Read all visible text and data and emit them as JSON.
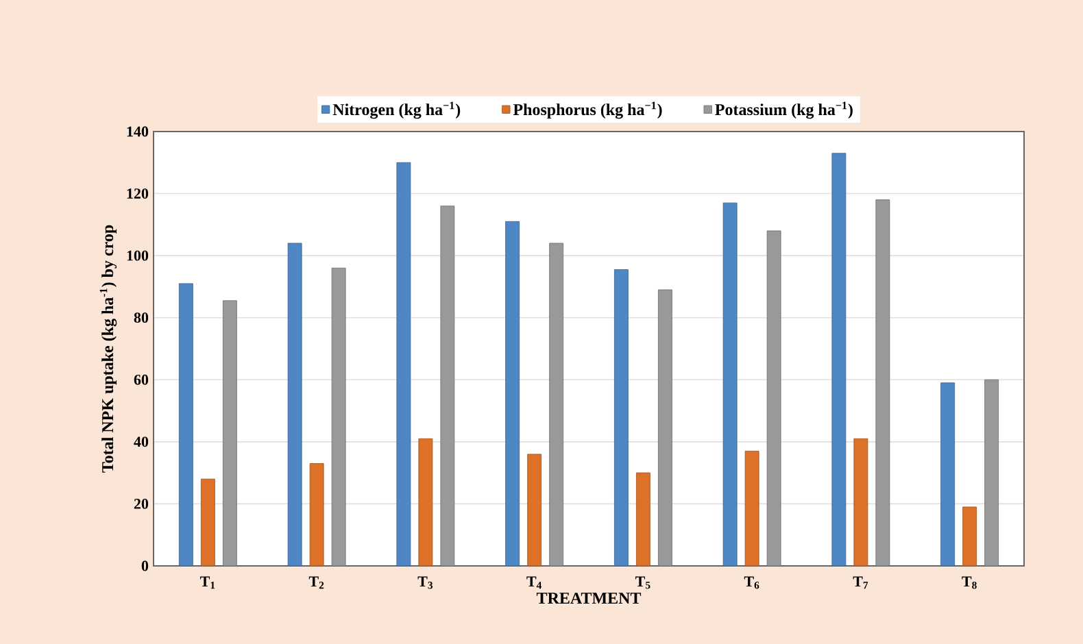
{
  "chart_data": {
    "type": "bar",
    "xlabel": "TREATMENT",
    "ylabel": "Total NPK uptake (kg ha$^{-1}$) by crop",
    "categories": [
      "T$_{1}$",
      "T$_{2}$",
      "T$_{3}$",
      "T$_{4}$",
      "T$_{5}$",
      "T$_{6}$",
      "T$_{7}$",
      "T$_{8}$"
    ],
    "series": [
      {
        "name": "Nitrogen (kg ha$^{−1}$)",
        "color": "#4f87c4",
        "values": [
          91,
          104,
          130,
          111,
          95.5,
          117,
          133,
          59
        ]
      },
      {
        "name": "Phosphorus  (kg ha$^{−1}$)",
        "color": "#de7128",
        "values": [
          28,
          33,
          41,
          36,
          30,
          37,
          41,
          19
        ]
      },
      {
        "name": "Potassium  (kg ha$^{−1}$)",
        "color": "#999999",
        "values": [
          85.5,
          96,
          116,
          104,
          89,
          108,
          118,
          60
        ]
      }
    ],
    "ylim": [
      0,
      140
    ],
    "yticks": [
      0,
      20,
      40,
      60,
      80,
      100,
      120,
      140
    ],
    "grid": "y",
    "legend": "top"
  }
}
